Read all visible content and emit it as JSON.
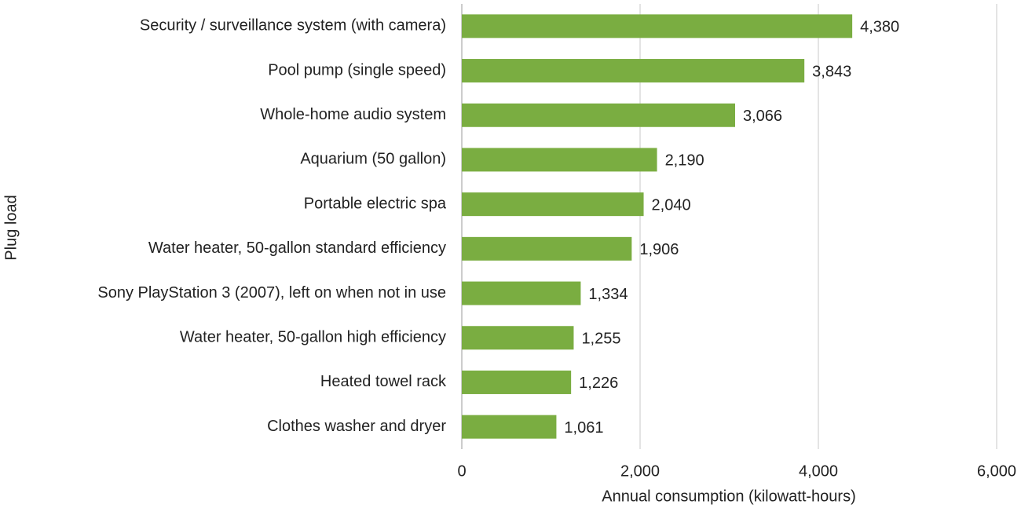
{
  "chart_data": {
    "type": "bar",
    "orientation": "horizontal",
    "categories": [
      "Security / surveillance system (with camera)",
      "Pool pump (single speed)",
      "Whole-home audio system",
      "Aquarium (50 gallon)",
      "Portable electric spa",
      "Water heater, 50-gallon standard efficiency",
      "Sony PlayStation 3 (2007), left on when not in use",
      "Water heater, 50-gallon high efficiency",
      "Heated towel rack",
      "Clothes washer and dryer"
    ],
    "values": [
      4380,
      3843,
      3066,
      2190,
      2040,
      1906,
      1334,
      1255,
      1226,
      1061
    ],
    "value_labels": [
      "4,380",
      "3,843",
      "3,066",
      "2,190",
      "2,040",
      "1,906",
      "1,334",
      "1,255",
      "1,226",
      "1,061"
    ],
    "color": "#7aad41",
    "xlabel": "Annual consumption (kilowatt-hours)",
    "ylabel": "Plug load",
    "xlim": [
      0,
      6000
    ],
    "xticks": [
      0,
      {
        "value": 2000,
        "label": "2,000"
      },
      {
        "value": 4000,
        "label": "4,000"
      },
      {
        "value": 6000,
        "label": "6,000"
      }
    ],
    "grid": true
  }
}
